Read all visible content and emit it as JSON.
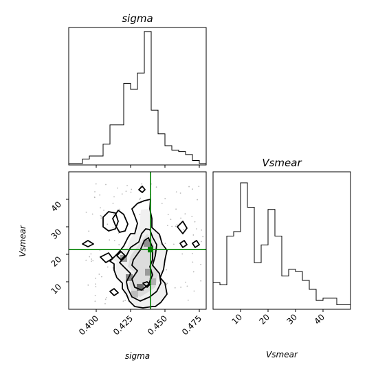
{
  "chart_data": [
    {
      "panel": "sigma-marginal",
      "type": "histogram",
      "title": "sigma",
      "xlim": [
        0.38,
        0.48
      ],
      "bin_edges": [
        0.38,
        0.385,
        0.39,
        0.395,
        0.4,
        0.405,
        0.41,
        0.415,
        0.42,
        0.425,
        0.43,
        0.435,
        0.44,
        0.445,
        0.45,
        0.455,
        0.46,
        0.465,
        0.47,
        0.475,
        0.48
      ],
      "counts": [
        1,
        1,
        4,
        6,
        6,
        14,
        27,
        27,
        55,
        51,
        62,
        90,
        37,
        21,
        13,
        10,
        9,
        7,
        3,
        1
      ]
    },
    {
      "panel": "vsmear-marginal",
      "type": "histogram",
      "title": "Vsmear",
      "xlim": [
        0,
        50
      ],
      "bin_edges": [
        0,
        2.5,
        5,
        7.5,
        10,
        12.5,
        15,
        17.5,
        20,
        22.5,
        25,
        27.5,
        30,
        32.5,
        35,
        37.5,
        40,
        42.5,
        45,
        47.5,
        50
      ],
      "counts": [
        12,
        11,
        33,
        35,
        57,
        46,
        21,
        29,
        45,
        33,
        15,
        18,
        17,
        13,
        9,
        4,
        5,
        5,
        2,
        2
      ],
      "xlabel": "Vsmear",
      "xticks": [
        "10",
        "20",
        "30",
        "40"
      ]
    },
    {
      "panel": "joint",
      "type": "scatter",
      "xlabel": "sigma",
      "ylabel": "Vsmear",
      "xlim": [
        0.38,
        0.48
      ],
      "ylim": [
        0,
        50
      ],
      "xticks": [
        "0.400",
        "0.425",
        "0.450",
        "0.475"
      ],
      "yticks": [
        "10",
        "20",
        "30",
        "40"
      ],
      "truth": {
        "sigma": 0.4395,
        "Vsmear": 21.7,
        "color": "#008000"
      },
      "contour_color": "#000000",
      "hex_bins_shaded": [
        {
          "sigma": 0.424,
          "Vsmear": 11.5,
          "shade": "#888888"
        },
        {
          "sigma": 0.432,
          "Vsmear": 8.0,
          "shade": "#707070"
        },
        {
          "sigma": 0.438,
          "Vsmear": 13.5,
          "shade": "#9a9a9a"
        },
        {
          "sigma": 0.441,
          "Vsmear": 10.0,
          "shade": "#b0b0b0"
        },
        {
          "sigma": 0.428,
          "Vsmear": 5.5,
          "shade": "#bdbdbd"
        },
        {
          "sigma": 0.42,
          "Vsmear": 18.5,
          "shade": "#a0a0a0"
        },
        {
          "sigma": 0.437,
          "Vsmear": 24.0,
          "shade": "#909090"
        }
      ]
    }
  ]
}
